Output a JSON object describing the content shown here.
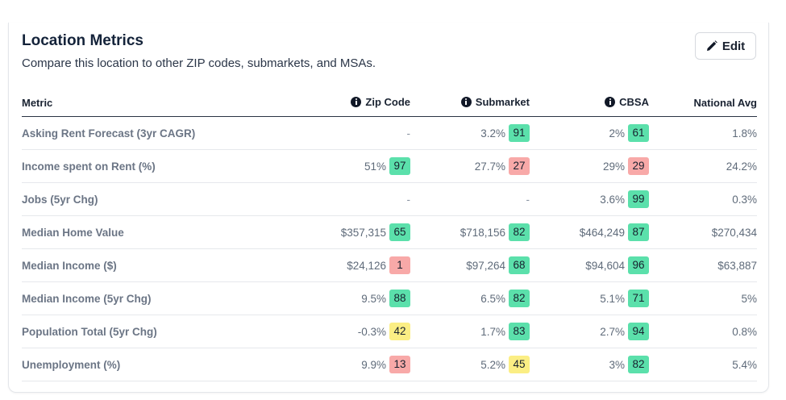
{
  "card": {
    "title": "Location Metrics",
    "subtitle": "Compare this location to other ZIP codes, submarkets, and MSAs.",
    "edit_label": "Edit"
  },
  "colors": {
    "green": "#5be0ab",
    "red": "#f8a9a8",
    "yellow": "#fbee84"
  },
  "table": {
    "headers": {
      "metric": "Metric",
      "zip": "Zip Code",
      "submarket": "Submarket",
      "cbsa": "CBSA",
      "national": "National Avg"
    },
    "rows": [
      {
        "name": "Asking Rent Forecast (3yr CAGR)",
        "zip": {
          "value": "-",
          "score": "",
          "color": ""
        },
        "submarket": {
          "value": "3.2%",
          "score": "91",
          "color": "green"
        },
        "cbsa": {
          "value": "2%",
          "score": "61",
          "color": "green"
        },
        "national": "1.8%"
      },
      {
        "name": "Income spent on Rent (%)",
        "zip": {
          "value": "51%",
          "score": "97",
          "color": "green"
        },
        "submarket": {
          "value": "27.7%",
          "score": "27",
          "color": "red"
        },
        "cbsa": {
          "value": "29%",
          "score": "29",
          "color": "red"
        },
        "national": "24.2%"
      },
      {
        "name": "Jobs (5yr Chg)",
        "zip": {
          "value": "-",
          "score": "",
          "color": ""
        },
        "submarket": {
          "value": "-",
          "score": "",
          "color": ""
        },
        "cbsa": {
          "value": "3.6%",
          "score": "99",
          "color": "green"
        },
        "national": "0.3%"
      },
      {
        "name": "Median Home Value",
        "zip": {
          "value": "$357,315",
          "score": "65",
          "color": "green"
        },
        "submarket": {
          "value": "$718,156",
          "score": "82",
          "color": "green"
        },
        "cbsa": {
          "value": "$464,249",
          "score": "87",
          "color": "green"
        },
        "national": "$270,434"
      },
      {
        "name": "Median Income ($)",
        "zip": {
          "value": "$24,126",
          "score": "1",
          "color": "red"
        },
        "submarket": {
          "value": "$97,264",
          "score": "68",
          "color": "green"
        },
        "cbsa": {
          "value": "$94,604",
          "score": "96",
          "color": "green"
        },
        "national": "$63,887"
      },
      {
        "name": "Median Income (5yr Chg)",
        "zip": {
          "value": "9.5%",
          "score": "88",
          "color": "green"
        },
        "submarket": {
          "value": "6.5%",
          "score": "82",
          "color": "green"
        },
        "cbsa": {
          "value": "5.1%",
          "score": "71",
          "color": "green"
        },
        "national": "5%"
      },
      {
        "name": "Population Total (5yr Chg)",
        "zip": {
          "value": "-0.3%",
          "score": "42",
          "color": "yellow"
        },
        "submarket": {
          "value": "1.7%",
          "score": "83",
          "color": "green"
        },
        "cbsa": {
          "value": "2.7%",
          "score": "94",
          "color": "green"
        },
        "national": "0.8%"
      },
      {
        "name": "Unemployment (%)",
        "zip": {
          "value": "9.9%",
          "score": "13",
          "color": "red"
        },
        "submarket": {
          "value": "5.2%",
          "score": "45",
          "color": "yellow"
        },
        "cbsa": {
          "value": "3%",
          "score": "82",
          "color": "green"
        },
        "national": "5.4%"
      }
    ]
  }
}
